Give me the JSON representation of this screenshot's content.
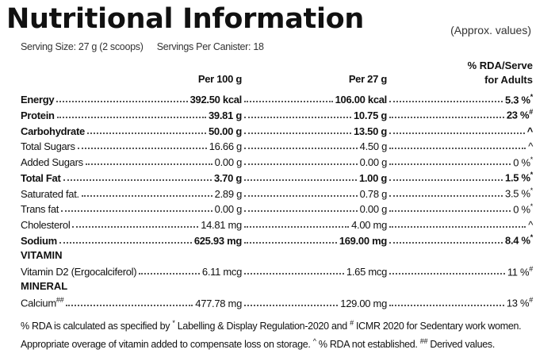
{
  "header": {
    "title": "Nutritional Information",
    "note": "(Approx. values)",
    "serving_size": "Serving Size: 27 g (2 scoops)",
    "servings_per_canister": "Servings Per Canister: 18"
  },
  "table": {
    "columns": [
      "Per 100 g",
      "Per 27 g"
    ],
    "rda_header": [
      "% RDA/Serve",
      "for Adults"
    ],
    "rows": [
      {
        "name": "Energy",
        "bold": true,
        "per100": "392.50 kcal",
        "per27": "106.00 kcal",
        "rda": "5.3 %",
        "rda_sup": "*"
      },
      {
        "name": "Protein",
        "bold": true,
        "per100": "39.81 g",
        "per27": "10.75 g",
        "rda": "23 %",
        "rda_sup": "#"
      },
      {
        "name": "Carbohydrate",
        "bold": true,
        "per100": "50.00 g",
        "per27": "13.50 g",
        "rda": "^"
      },
      {
        "name": "Total Sugars",
        "bold": false,
        "per100": "16.66 g",
        "per27": "4.50 g",
        "rda": "^"
      },
      {
        "name": "Added Sugars",
        "bold": false,
        "per100": "0.00 g",
        "per27": "0.00 g",
        "rda": "0 %",
        "rda_sup": "*"
      },
      {
        "name": "Total Fat",
        "bold": true,
        "per100": "3.70 g",
        "per27": "1.00 g",
        "rda": "1.5 %",
        "rda_sup": "*"
      },
      {
        "name": "Saturated fat.",
        "bold": false,
        "per100": "2.89 g",
        "per27": "0.78 g",
        "rda": "3.5 %",
        "rda_sup": "*"
      },
      {
        "name": "Trans fat",
        "bold": false,
        "per100": "0.00 g",
        "per27": "0.00 g",
        "rda": "0 %",
        "rda_sup": "*"
      },
      {
        "name": "Cholesterol",
        "bold": false,
        "per100": "14.81 mg",
        "per27": "4.00 mg",
        "rda": "^"
      },
      {
        "name": "Sodium",
        "bold": true,
        "per100": "625.93 mg",
        "per27": "169.00 mg",
        "rda": "8.4 %",
        "rda_sup": "*"
      },
      {
        "section": "VITAMIN"
      },
      {
        "name": "Vitamin D2 (Ergocalciferol)",
        "bold": false,
        "per100": "6.11 mcg",
        "per27": "1.65 mcg",
        "rda": "11 %",
        "rda_sup": "#"
      },
      {
        "section": "MINERAL"
      },
      {
        "name": "Calcium",
        "name_sup": "##",
        "bold": false,
        "per100": "477.78 mg",
        "per27": "129.00 mg",
        "rda": "13 %",
        "rda_sup": "#"
      }
    ]
  },
  "footnote": [
    {
      "text": "% RDA is calculated as specified by "
    },
    {
      "sup": "*"
    },
    {
      "text": " Labelling & Display Regulation-2020 and "
    },
    {
      "sup": "#"
    },
    {
      "text": " ICMR 2020 for Sedentary work women. Appropriate overage of vitamin added to compensate loss on storage. "
    },
    {
      "sup": "^"
    },
    {
      "text": " % RDA not established. "
    },
    {
      "sup": "##"
    },
    {
      "text": " Derived values."
    }
  ]
}
